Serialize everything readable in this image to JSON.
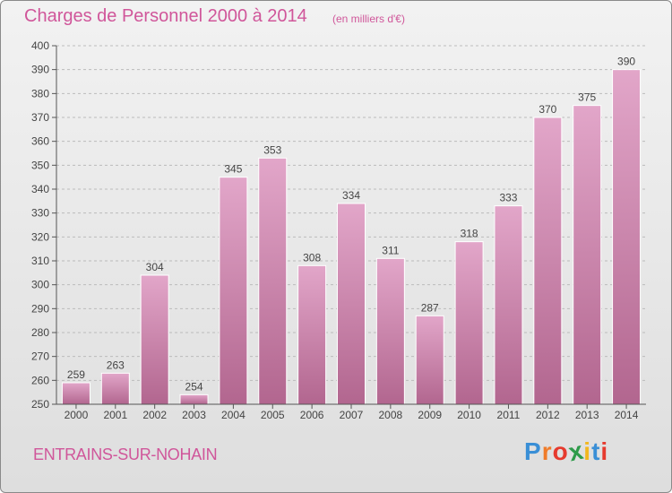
{
  "header": {
    "title": "Charges de Personnel 2000 à 2014",
    "subtitle": "(en milliers d'€)"
  },
  "footer": {
    "commune": "ENTRAINS-SUR-NOHAIN",
    "logo_letters": [
      "P",
      "r",
      "o",
      "x",
      "i",
      "t",
      "i"
    ],
    "logo_colors": [
      "#3a8fd6",
      "#f07c2a",
      "#e63a2e",
      "#2e9b4a",
      "#f2b71f",
      "#3a8fd6",
      "#e63a2e"
    ]
  },
  "colors": {
    "accent": "#d0569a",
    "bar_top": "#e2a6c9",
    "bar_bottom": "#b2668f",
    "grid": "#bbbbbb"
  },
  "chart_data": {
    "type": "bar",
    "categories": [
      "2000",
      "2001",
      "2002",
      "2003",
      "2004",
      "2005",
      "2006",
      "2007",
      "2008",
      "2009",
      "2010",
      "2011",
      "2012",
      "2013",
      "2014"
    ],
    "values": [
      259,
      263,
      304,
      254,
      345,
      353,
      308,
      334,
      311,
      287,
      318,
      333,
      370,
      375,
      390
    ],
    "title": "Charges de Personnel 2000 à 2014",
    "ylim": [
      250,
      400
    ],
    "yticks": [
      250,
      260,
      270,
      280,
      290,
      300,
      310,
      320,
      330,
      340,
      350,
      360,
      370,
      380,
      390,
      400
    ],
    "grid": true
  }
}
